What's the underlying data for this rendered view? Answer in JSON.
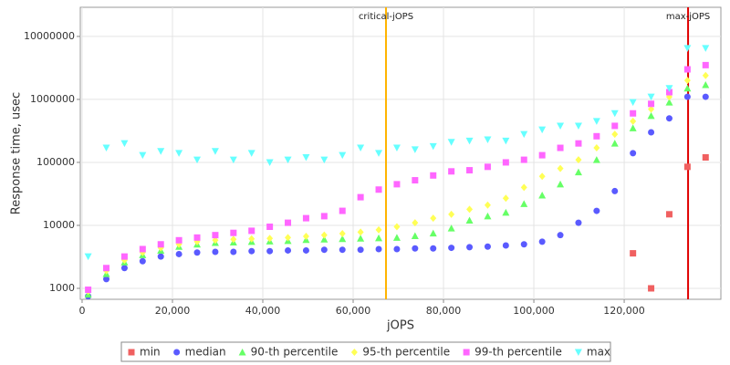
{
  "chart_data": {
    "type": "scatter",
    "xlabel": "jOPS",
    "ylabel": "Response time, usec",
    "log_y": true,
    "grid": true,
    "legend": "bottom",
    "x": [
      1340,
      5360,
      9380,
      13400,
      17420,
      21440,
      25460,
      29480,
      33500,
      37520,
      41540,
      45560,
      49580,
      53600,
      57620,
      61640,
      65660,
      69680,
      73700,
      77720,
      81740,
      85760,
      89780,
      93800,
      97820,
      101840,
      105860,
      109880,
      113900,
      117920,
      121940,
      125960,
      129980,
      134000,
      138020
    ],
    "series": [
      {
        "name": "min",
        "color": "#f06060",
        "marker": "square",
        "values": [
          null,
          null,
          null,
          null,
          null,
          null,
          null,
          null,
          null,
          null,
          null,
          null,
          null,
          null,
          null,
          null,
          null,
          null,
          null,
          null,
          null,
          null,
          null,
          null,
          null,
          null,
          null,
          null,
          null,
          null,
          3600,
          1000,
          15000,
          85000,
          120000
        ]
      },
      {
        "name": "median",
        "color": "#5a5aff",
        "marker": "circle",
        "values": [
          750,
          1400,
          2100,
          2700,
          3200,
          3500,
          3700,
          3800,
          3800,
          3900,
          3900,
          4000,
          4000,
          4100,
          4100,
          4100,
          4200,
          4200,
          4300,
          4300,
          4400,
          4500,
          4600,
          4800,
          5000,
          5500,
          7000,
          11000,
          17000,
          35000,
          140000,
          300000,
          500000,
          1100000,
          1100000
        ]
      },
      {
        "name": "90-th percentile",
        "color": "#66ff66",
        "marker": "triangle-up",
        "values": [
          800,
          1700,
          2600,
          3400,
          4000,
          4600,
          5000,
          5300,
          5400,
          5500,
          5600,
          5700,
          5900,
          6000,
          6100,
          6200,
          6300,
          6400,
          6800,
          7500,
          9000,
          12000,
          14000,
          16000,
          22000,
          30000,
          45000,
          70000,
          110000,
          200000,
          350000,
          550000,
          900000,
          1500000,
          1700000
        ]
      },
      {
        "name": "95-th percentile",
        "color": "#ffff55",
        "marker": "diamond",
        "values": [
          900,
          1900,
          2800,
          3700,
          4400,
          5000,
          5500,
          5800,
          6000,
          6100,
          6200,
          6400,
          6700,
          7000,
          7400,
          7800,
          8500,
          9500,
          11000,
          13000,
          15000,
          18000,
          21000,
          27000,
          40000,
          60000,
          80000,
          110000,
          170000,
          280000,
          450000,
          700000,
          1100000,
          2000000,
          2400000
        ]
      },
      {
        "name": "99-th percentile",
        "color": "#ff66ff",
        "marker": "square",
        "values": [
          950,
          2100,
          3200,
          4200,
          5000,
          5800,
          6400,
          7000,
          7600,
          8200,
          9500,
          11000,
          13000,
          14000,
          17000,
          28000,
          37000,
          45000,
          52000,
          62000,
          72000,
          75000,
          85000,
          100000,
          110000,
          130000,
          170000,
          200000,
          260000,
          380000,
          600000,
          850000,
          1300000,
          3000000,
          3500000
        ]
      },
      {
        "name": "max",
        "color": "#66ffff",
        "marker": "triangle-down",
        "values": [
          3200,
          170000,
          200000,
          130000,
          150000,
          140000,
          110000,
          150000,
          110000,
          140000,
          100000,
          110000,
          120000,
          110000,
          130000,
          170000,
          140000,
          170000,
          160000,
          180000,
          210000,
          220000,
          230000,
          220000,
          280000,
          330000,
          380000,
          380000,
          450000,
          600000,
          900000,
          1100000,
          1500000,
          6500000,
          6500000
        ]
      }
    ],
    "annotations": [
      {
        "label": "critical-jOPS",
        "x": 67270,
        "color": "#ffb400"
      },
      {
        "label": "max-jOPS",
        "x": 134140,
        "color": "#e00000"
      }
    ],
    "xlim": [
      -400,
      141400
    ],
    "xticks": [
      {
        "value": 0,
        "label": "0"
      },
      {
        "value": 20000,
        "label": "20,000"
      },
      {
        "value": 40000,
        "label": "40,000"
      },
      {
        "value": 60000,
        "label": "60,000"
      },
      {
        "value": 80000,
        "label": "80,000"
      },
      {
        "value": 100000,
        "label": "100,000"
      },
      {
        "value": 120000,
        "label": "120,000"
      }
    ],
    "ylim": [
      670,
      29000000
    ],
    "yticks": [
      1000,
      10000,
      100000,
      1000000,
      10000000
    ]
  }
}
